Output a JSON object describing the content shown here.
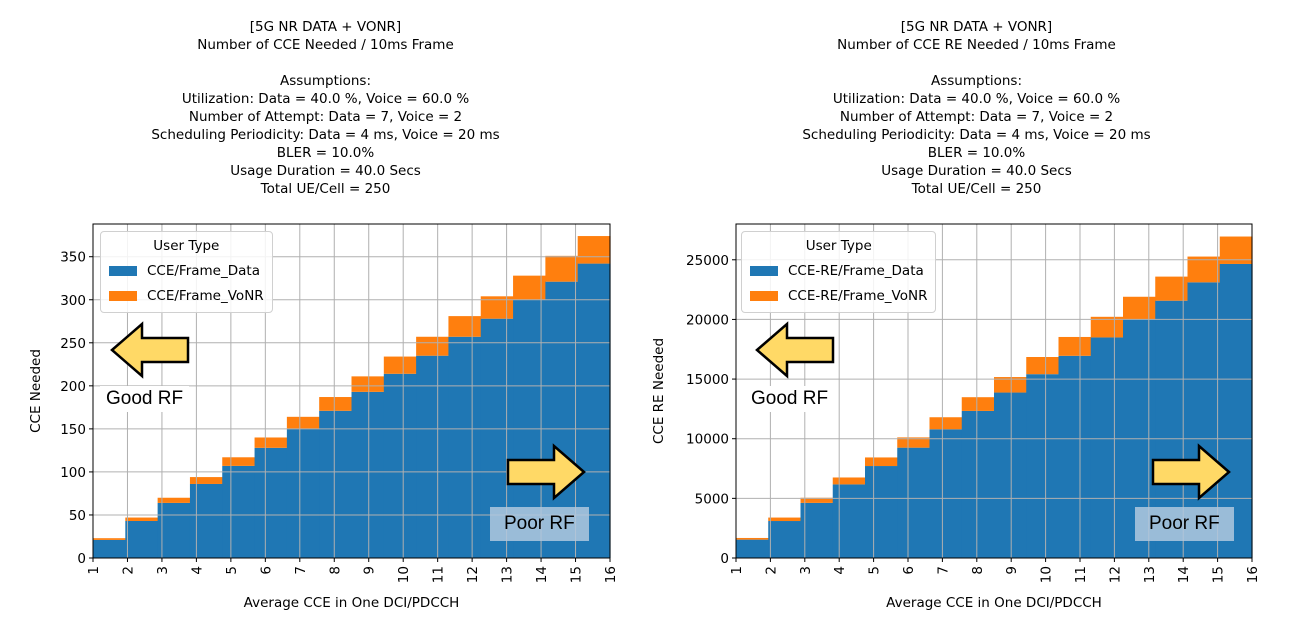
{
  "colors": {
    "data": "#1f77b4",
    "vonr": "#ff7f0e",
    "arrow_fill": "#ffd966",
    "arrow_stroke": "#000000",
    "grid": "#b0b0b0"
  },
  "chart_data": [
    {
      "type": "bar",
      "stacked": true,
      "title_lines": [
        "[5G NR DATA + VONR]",
        "Number of CCE Needed / 10ms Frame",
        "",
        "Assumptions:",
        "Utilization: Data = 40.0 %, Voice = 60.0 %",
        "Number of Attempt: Data = 7, Voice = 2",
        "Scheduling Periodicity: Data = 4 ms, Voice = 20 ms",
        "BLER = 10.0%",
        "Usage Duration = 40.0 Secs",
        "Total UE/Cell = 250"
      ],
      "xlabel": "Average CCE in One DCI/PDCCH",
      "ylabel": "CCE Needed",
      "xlim": [
        1,
        16
      ],
      "ylim": [
        0,
        388
      ],
      "yticks": [
        0,
        50,
        100,
        150,
        200,
        250,
        300,
        350
      ],
      "xticks": [
        1,
        2,
        3,
        4,
        5,
        6,
        7,
        8,
        9,
        10,
        11,
        12,
        13,
        14,
        15,
        16
      ],
      "grid": true,
      "legend_title": "User Type",
      "legend_placement": "upper-left",
      "series": [
        {
          "name": "CCE/Frame_Data",
          "values": [
            21,
            43,
            64,
            86,
            107,
            128,
            150,
            171,
            193,
            214,
            235,
            257,
            278,
            300,
            321,
            342
          ]
        },
        {
          "name": "CCE/Frame_VoNR",
          "values": [
            2,
            4,
            6,
            8,
            10,
            12,
            14,
            16,
            18,
            20,
            22,
            24,
            26,
            28,
            30,
            32
          ]
        }
      ],
      "annotations": {
        "good": "Good RF",
        "poor": "Poor RF"
      }
    },
    {
      "type": "bar",
      "stacked": true,
      "title_lines": [
        "[5G NR DATA + VONR]",
        "Number of CCE RE Needed / 10ms Frame",
        "",
        "Assumptions:",
        "Utilization: Data = 40.0 %, Voice = 60.0 %",
        "Number of Attempt: Data = 7, Voice = 2",
        "Scheduling Periodicity: Data = 4 ms, Voice = 20 ms",
        "BLER = 10.0%",
        "Usage Duration = 40.0 Secs",
        "Total UE/Cell = 250"
      ],
      "xlabel": "Average CCE in One DCI/PDCCH",
      "ylabel": "CCE RE Needed",
      "xlim": [
        1,
        16
      ],
      "ylim": [
        0,
        28000
      ],
      "yticks": [
        0,
        5000,
        10000,
        15000,
        20000,
        25000
      ],
      "xticks": [
        1,
        2,
        3,
        4,
        5,
        6,
        7,
        8,
        9,
        10,
        11,
        12,
        13,
        14,
        15,
        16
      ],
      "grid": true,
      "legend_title": "User Type",
      "legend_placement": "upper-left",
      "series": [
        {
          "name": "CCE-RE/Frame_Data",
          "values": [
            1540,
            3100,
            4620,
            6170,
            7710,
            9250,
            10790,
            12330,
            13870,
            15410,
            16950,
            18490,
            20030,
            21570,
            23110,
            24650
          ]
        },
        {
          "name": "CCE-RE/Frame_VoNR",
          "values": [
            140,
            290,
            430,
            580,
            720,
            860,
            1010,
            1150,
            1300,
            1440,
            1580,
            1730,
            1870,
            2020,
            2160,
            2300
          ]
        }
      ],
      "annotations": {
        "good": "Good RF",
        "poor": "Poor RF"
      }
    }
  ]
}
